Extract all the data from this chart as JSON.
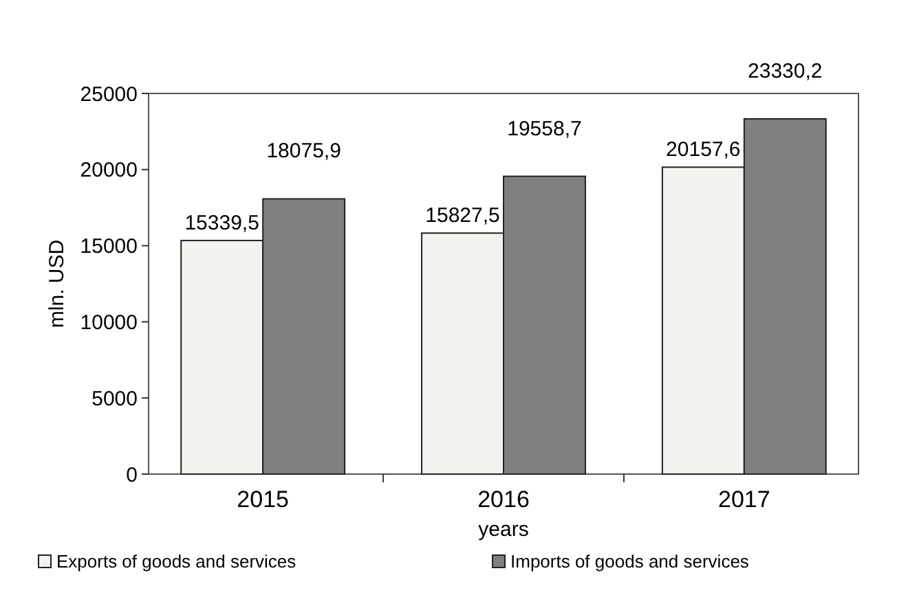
{
  "chart_data": {
    "type": "bar",
    "xlabel": "years",
    "ylabel": "mln. USD",
    "categories": [
      "2015",
      "2016",
      "2017"
    ],
    "series": [
      {
        "name": "Exports of goods and services",
        "color": "#f2f2ef",
        "values": [
          15339.5,
          15827.5,
          20157.6
        ],
        "value_labels": [
          "15339,5",
          "15827,5",
          "20157,6"
        ]
      },
      {
        "name": "Imports of goods and services",
        "color": "#808080",
        "values": [
          18075.9,
          19558.7,
          23330.2
        ],
        "value_labels": [
          "18075,9",
          "19558,7",
          "23330,2"
        ]
      }
    ],
    "ylim": [
      0,
      25000
    ],
    "yticks": [
      0,
      5000,
      10000,
      15000,
      20000,
      25000
    ],
    "legend": "bottom"
  }
}
